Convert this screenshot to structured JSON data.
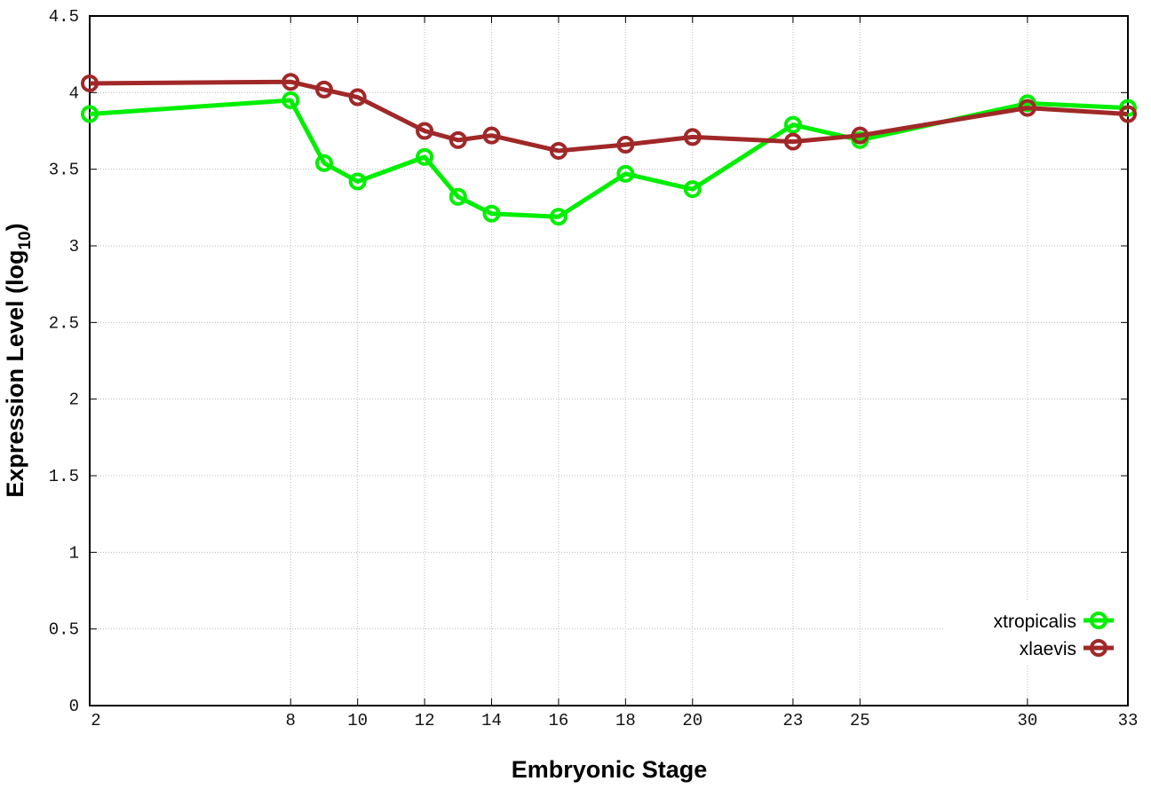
{
  "chart_data": {
    "type": "line",
    "title": "",
    "xlabel": "Embryonic Stage",
    "ylabel": "Expression Level (log",
    "ylabel_subscript": "10",
    "ylabel_close": ")",
    "xlim": [
      2,
      33
    ],
    "ylim": [
      0,
      4.5
    ],
    "grid": true,
    "legend_position": "bottom-right",
    "x_ticks": [
      2,
      8,
      10,
      12,
      14,
      16,
      18,
      20,
      23,
      25,
      30,
      33
    ],
    "x_tick_labels": [
      "2",
      "8",
      "10",
      "12",
      "14",
      "16",
      "18",
      "20",
      "23",
      "25",
      "30",
      "33"
    ],
    "y_ticks": [
      0,
      0.5,
      1,
      1.5,
      2,
      2.5,
      3,
      3.5,
      4,
      4.5
    ],
    "y_tick_labels": [
      "0",
      "0.5",
      "1",
      "1.5",
      "2",
      "2.5",
      "3",
      "3.5",
      "4",
      "4.5"
    ],
    "x": [
      2,
      8,
      9,
      10,
      12,
      13,
      14,
      16,
      18,
      20,
      23,
      25,
      30,
      33
    ],
    "series": [
      {
        "name": "xtropicalis",
        "color": "#00ee00",
        "values": [
          3.86,
          3.95,
          3.54,
          3.42,
          3.58,
          3.32,
          3.21,
          3.19,
          3.47,
          3.37,
          3.79,
          3.69,
          3.93,
          3.9
        ]
      },
      {
        "name": "xlaevis",
        "color": "#a02828",
        "values": [
          4.06,
          4.07,
          4.02,
          3.97,
          3.75,
          3.69,
          3.72,
          3.62,
          3.66,
          3.71,
          3.68,
          3.72,
          3.9,
          3.86
        ]
      }
    ]
  }
}
